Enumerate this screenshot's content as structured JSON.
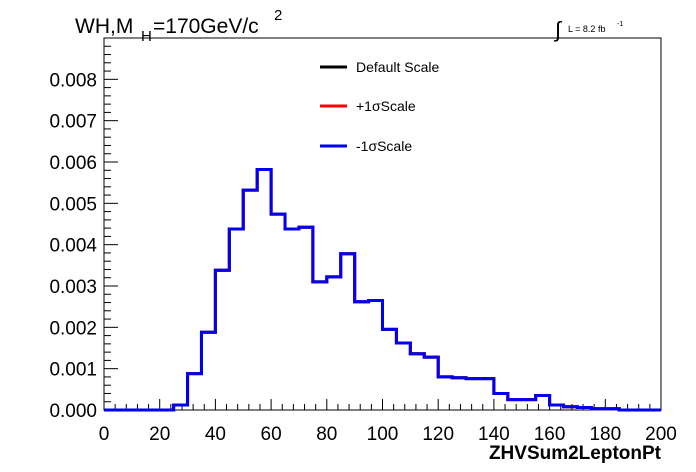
{
  "header": {
    "title_main": "WH,M",
    "title_sub": "H",
    "title_rest": "=170GeV/c",
    "title_sup": "2",
    "lumi_int": "∫",
    "lumi_text": "L = 8.2 fb",
    "lumi_sup": "-1"
  },
  "chart_data": {
    "type": "line",
    "xlabel": "ZHVSum2LeptonPt",
    "ylabel": "",
    "xlim": [
      0,
      200
    ],
    "ylim": [
      0,
      0.009
    ],
    "x_ticks": [
      "0",
      "20",
      "40",
      "60",
      "80",
      "100",
      "120",
      "140",
      "160",
      "180",
      "200"
    ],
    "y_ticks": [
      "0.000",
      "0.001",
      "0.002",
      "0.003",
      "0.004",
      "0.005",
      "0.006",
      "0.007",
      "0.008"
    ],
    "grid": false,
    "legend_position": "top-center",
    "bin_width": 5,
    "bin_edges_start": 0,
    "series": [
      {
        "name": "Default Scale",
        "color": "#000000",
        "values": [
          0,
          0,
          0,
          0,
          0,
          0.00012,
          0.00088,
          0.00188,
          0.00338,
          0.00438,
          0.00532,
          0.00582,
          0.00474,
          0.00438,
          0.00442,
          0.0031,
          0.00322,
          0.00378,
          0.00262,
          0.00265,
          0.00195,
          0.00162,
          0.00136,
          0.00128,
          0.0008,
          0.00078,
          0.00076,
          0.00076,
          0.0004,
          0.00025,
          0.00025,
          0.00035,
          0.00012,
          8e-05,
          6e-05,
          3e-05,
          3e-05,
          0,
          0,
          0
        ]
      },
      {
        "name": "+1σScale",
        "color": "#ff0000",
        "values": [
          0,
          0,
          0,
          0,
          0,
          0.00012,
          0.00088,
          0.00188,
          0.00338,
          0.00438,
          0.00532,
          0.00582,
          0.00474,
          0.00438,
          0.00442,
          0.0031,
          0.00322,
          0.00378,
          0.00262,
          0.00265,
          0.00195,
          0.00162,
          0.00136,
          0.00128,
          0.0008,
          0.00078,
          0.00076,
          0.00076,
          0.0004,
          0.00025,
          0.00025,
          0.00035,
          0.00012,
          8e-05,
          6e-05,
          3e-05,
          3e-05,
          0,
          0,
          0
        ]
      },
      {
        "name": "-1σScale",
        "color": "#0000ee",
        "values": [
          0,
          0,
          0,
          0,
          0,
          0.00012,
          0.00088,
          0.00188,
          0.00338,
          0.00438,
          0.00532,
          0.00582,
          0.00474,
          0.00438,
          0.00442,
          0.0031,
          0.00322,
          0.00378,
          0.00262,
          0.00265,
          0.00195,
          0.00162,
          0.00136,
          0.00128,
          0.0008,
          0.00078,
          0.00076,
          0.00076,
          0.0004,
          0.00025,
          0.00025,
          0.00035,
          0.00012,
          8e-05,
          6e-05,
          3e-05,
          3e-05,
          0,
          0,
          0
        ]
      }
    ]
  }
}
